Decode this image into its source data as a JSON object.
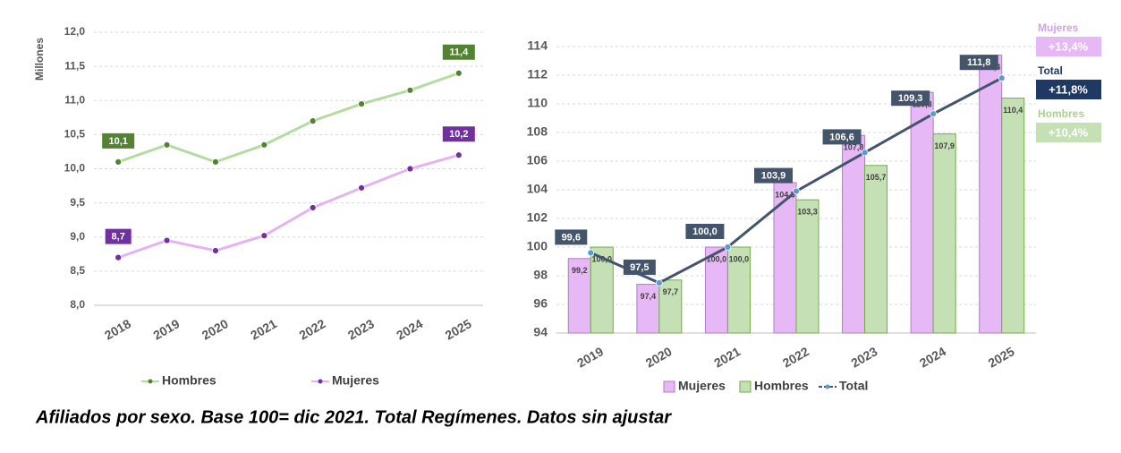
{
  "chart_data": [
    {
      "type": "line",
      "y_label": "Millones",
      "categories": [
        "2018",
        "2019",
        "2020",
        "2021",
        "2022",
        "2023",
        "2024",
        "2025"
      ],
      "ylim": [
        8,
        12
      ],
      "yticks": [
        {
          "value": 8,
          "label": "8,0"
        },
        {
          "value": 8.5,
          "label": "8,5"
        },
        {
          "value": 9,
          "label": "9,0"
        },
        {
          "value": 9.5,
          "label": "9,5"
        },
        {
          "value": 10,
          "label": "10,0"
        },
        {
          "value": 10.5,
          "label": "10,5"
        },
        {
          "value": 11,
          "label": "11,0"
        },
        {
          "value": 11.5,
          "label": "11,5"
        },
        {
          "value": 12,
          "label": "12,0"
        }
      ],
      "grid": true,
      "series": [
        {
          "name": "Hombres",
          "type": "line",
          "color": "#b4dca0",
          "marker_color": "#548235",
          "values": [
            10.1,
            10.35,
            10.1,
            10.35,
            10.7,
            10.95,
            11.15,
            11.4
          ],
          "value_labels": [
            "10,1",
            null,
            null,
            null,
            null,
            null,
            null,
            "11,4"
          ]
        },
        {
          "name": "Mujeres",
          "type": "line",
          "color": "#e4b4f2",
          "marker_color": "#7030a0",
          "values": [
            8.7,
            8.95,
            8.8,
            9.02,
            9.43,
            9.72,
            10.0,
            10.2
          ],
          "value_labels": [
            "8,7",
            null,
            null,
            null,
            null,
            null,
            null,
            "10,2"
          ]
        }
      ]
    },
    {
      "type": "bar",
      "categories": [
        "2019",
        "2020",
        "2021",
        "2022",
        "2023",
        "2024",
        "2025"
      ],
      "ylim": [
        94,
        114
      ],
      "yticks": [
        94,
        96,
        98,
        100,
        102,
        104,
        106,
        108,
        110,
        112,
        114
      ],
      "grid": true,
      "series": [
        {
          "name": "Mujeres",
          "type": "bar",
          "color": "#e6b8f5",
          "marker_color": "#b07cc6",
          "values": [
            99.2,
            97.4,
            100.0,
            104.5,
            107.8,
            110.8,
            113.4
          ],
          "value_labels": [
            "99,2",
            "97,4",
            "100,0",
            "104,5",
            "107,8",
            "110,8",
            "113,4"
          ]
        },
        {
          "name": "Hombres",
          "type": "bar",
          "color": "#c5e0b4",
          "marker_color": "#70ad47",
          "values": [
            100.0,
            97.7,
            100.0,
            103.3,
            105.7,
            107.9,
            110.4
          ],
          "value_labels": [
            "100,0",
            "97,7",
            "100,0",
            "103,3",
            "105,7",
            "107,9",
            "110,4"
          ]
        },
        {
          "name": "Total",
          "type": "line",
          "color": "#44546a",
          "marker_color": "#5b9bd5",
          "values": [
            99.6,
            97.5,
            100.0,
            103.9,
            106.6,
            109.3,
            111.8
          ],
          "value_labels": [
            "99,6",
            "97,5",
            "100,0",
            "103,9",
            "106,6",
            "109,3",
            "111,8"
          ]
        }
      ],
      "annotations": [
        {
          "label": "Mujeres",
          "text": "+13,4%",
          "color": "#e6b8f5"
        },
        {
          "label": "Total",
          "text": "+11,8%",
          "color": "#1f3864"
        },
        {
          "label": "Hombres",
          "text": "+10,4%",
          "color": "#c5e0b4"
        }
      ]
    }
  ],
  "caption": "Afiliados por sexo. Base 100= dic 2021. Total Regímenes. Datos sin ajustar"
}
